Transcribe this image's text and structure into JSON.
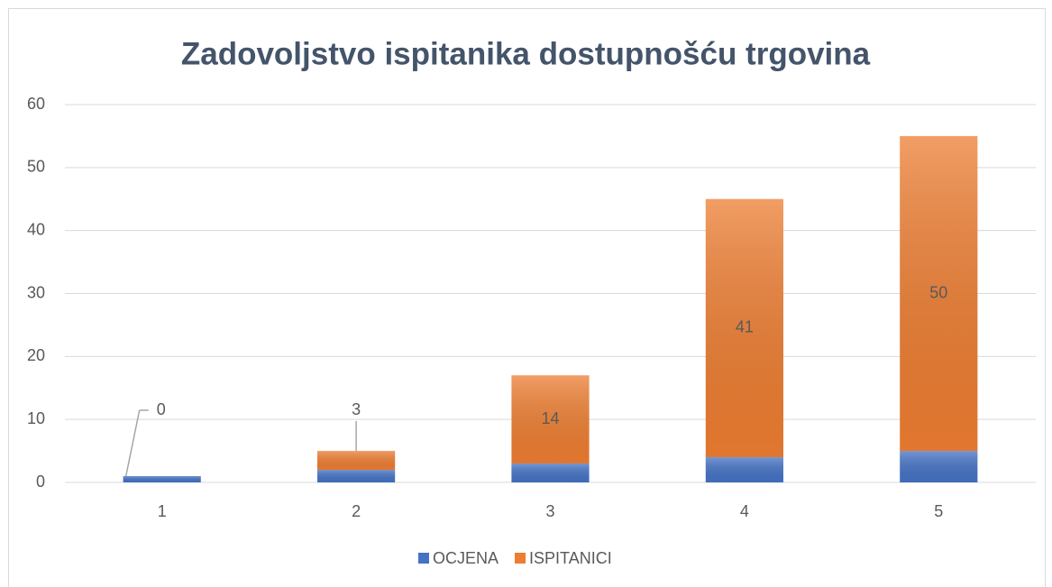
{
  "chart_data": {
    "type": "bar",
    "stacked": true,
    "title": "Zadovoljstvo ispitanika dostupnošću trgovina",
    "categories": [
      "1",
      "2",
      "3",
      "4",
      "5"
    ],
    "series": [
      {
        "name": "OCJENA",
        "color": "#4472c4",
        "values": [
          1,
          2,
          3,
          4,
          5
        ]
      },
      {
        "name": "ISPITANICI",
        "color": "#ed7d31",
        "values": [
          0,
          3,
          14,
          41,
          50
        ],
        "data_labels": true
      }
    ],
    "ylim": [
      0,
      60
    ],
    "yticks": [
      0,
      10,
      20,
      30,
      40,
      50,
      60
    ],
    "grid": true,
    "legend": "bottom"
  }
}
